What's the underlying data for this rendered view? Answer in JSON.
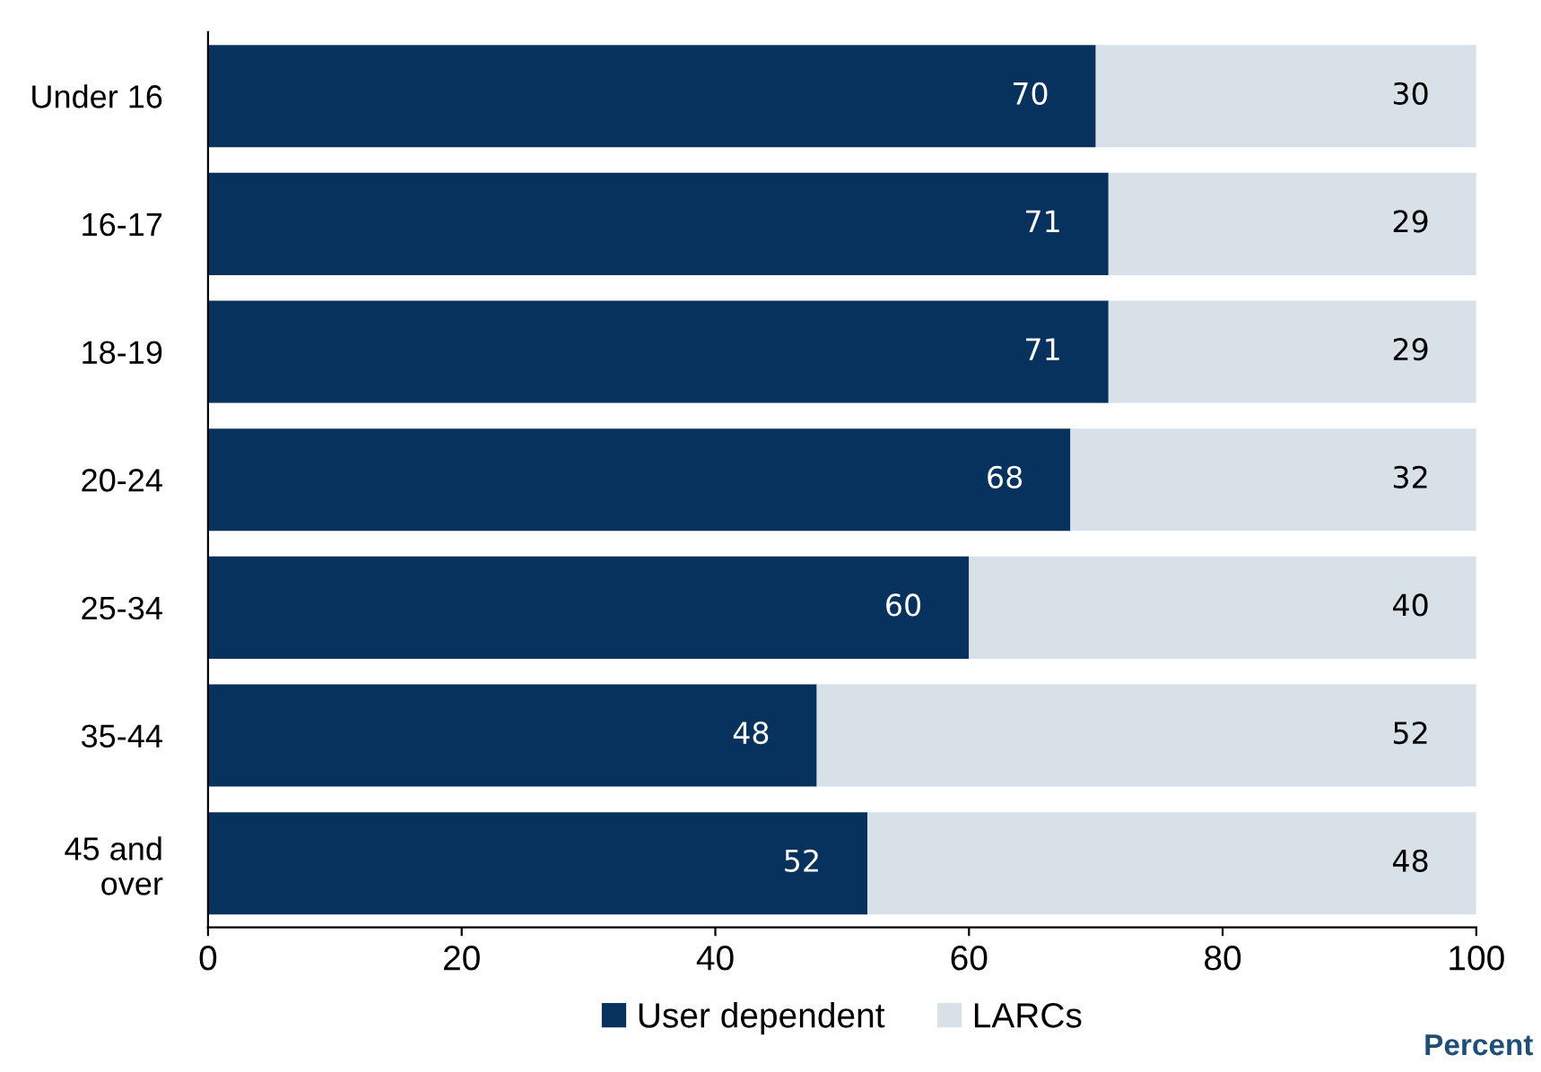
{
  "chart_data": {
    "type": "bar",
    "orientation": "horizontal",
    "stacked": true,
    "categories": [
      "Under 16",
      "16-17",
      "18-19",
      "20-24",
      "25-34",
      "35-44",
      "45 and\nover"
    ],
    "series": [
      {
        "name": "User dependent",
        "color": "#08325e",
        "values": [
          70,
          71,
          71,
          68,
          60,
          48,
          52
        ]
      },
      {
        "name": "LARCs",
        "color": "#d9e1e8",
        "values": [
          30,
          29,
          29,
          32,
          40,
          52,
          48
        ]
      }
    ],
    "xlim": [
      0,
      100
    ],
    "xticks": [
      0,
      20,
      40,
      60,
      80,
      100
    ],
    "xlabel": "Percent",
    "data_labels": true,
    "legend": "bottom",
    "grid": false
  }
}
